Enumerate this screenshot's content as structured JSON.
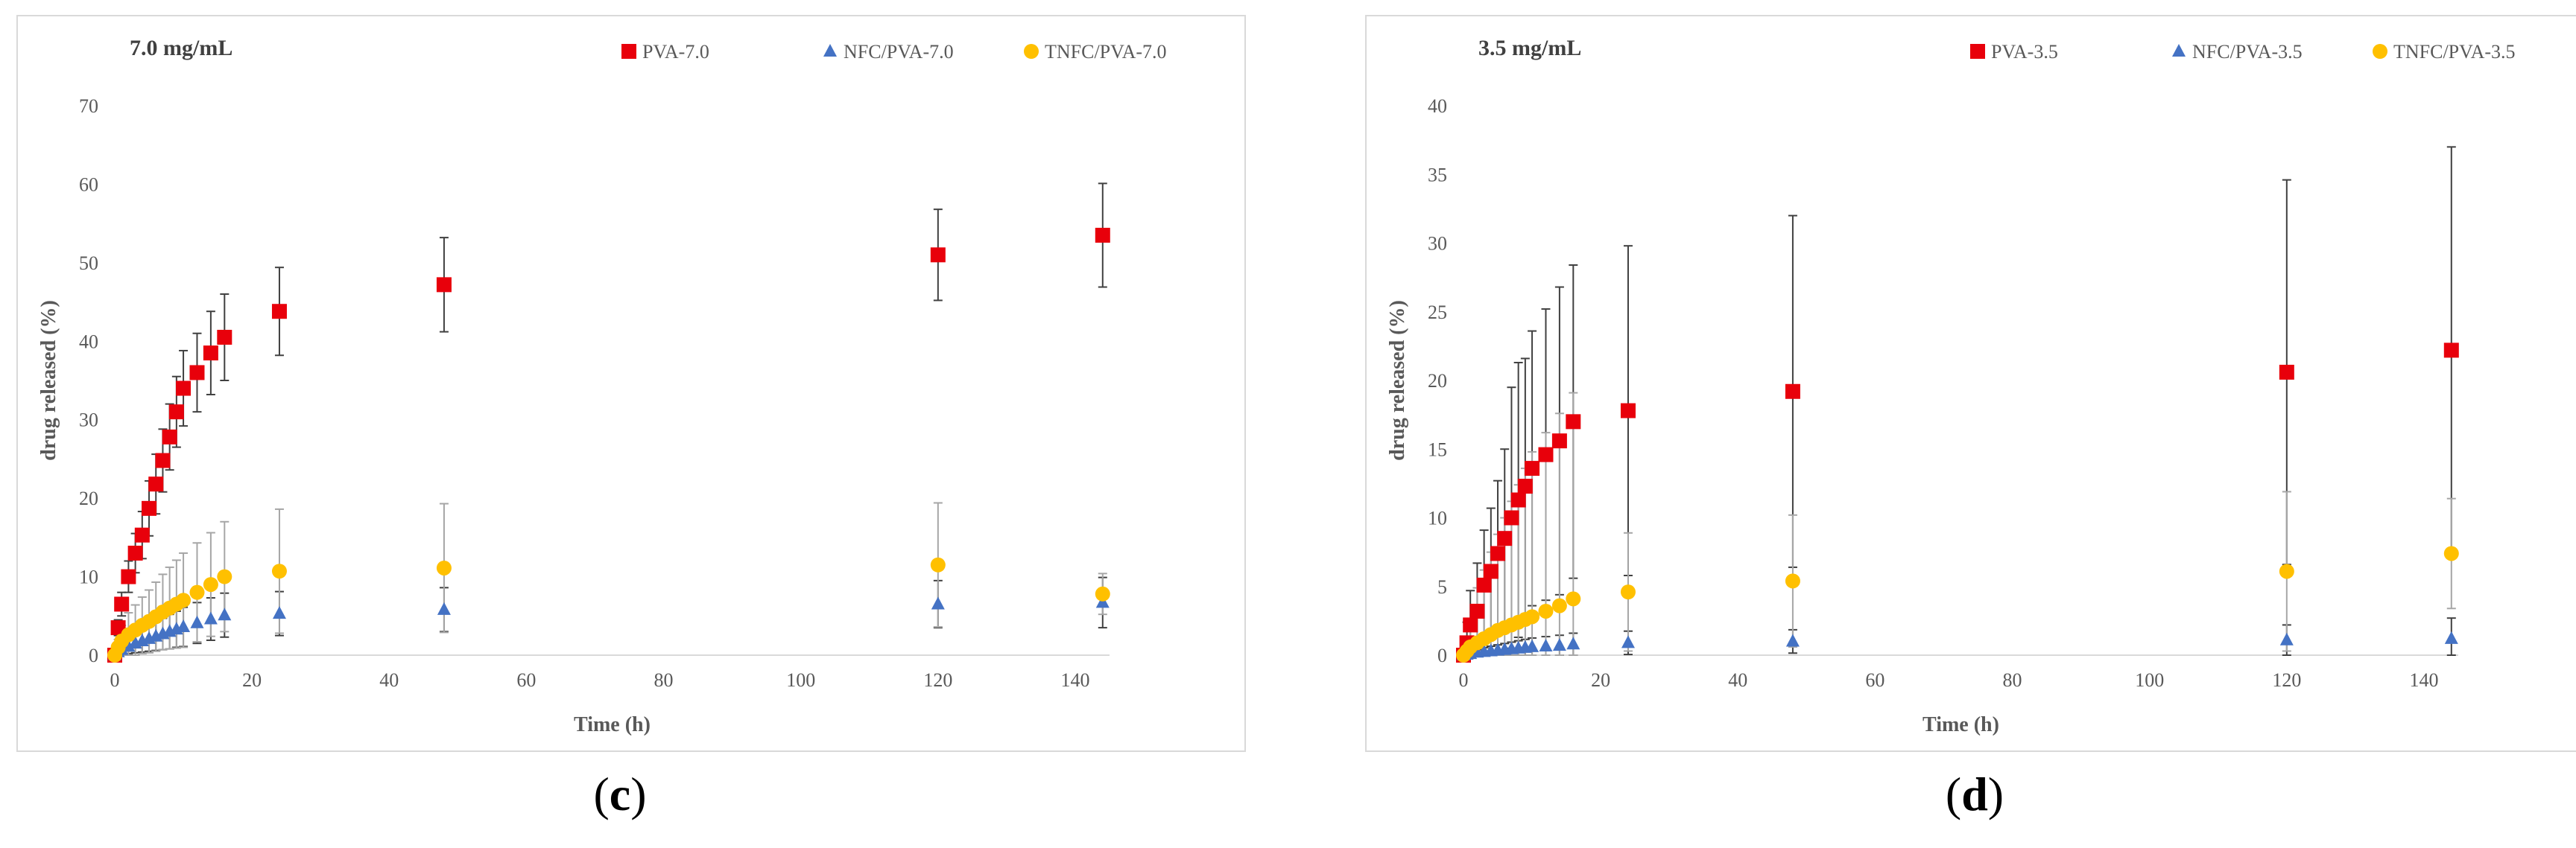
{
  "captions": [
    "(c)",
    "(d)"
  ],
  "chart_data": [
    {
      "type": "scatter",
      "title": "7.0 mg/mL",
      "xlabel": "Time (h)",
      "ylabel": "drug released (%)",
      "xlim": [
        0,
        145
      ],
      "ylim": [
        0,
        70
      ],
      "xticks": [
        0,
        20,
        40,
        60,
        80,
        100,
        120,
        140
      ],
      "yticks": [
        0,
        10,
        20,
        30,
        40,
        50,
        60,
        70
      ],
      "grid": false,
      "legend_position": "top-right",
      "series": [
        {
          "name": "PVA-7.0",
          "color": "#e8000b",
          "marker": "square",
          "x": [
            0,
            0.5,
            1,
            2,
            3,
            4,
            5,
            6,
            7,
            8,
            9,
            10,
            12,
            14,
            16,
            24,
            48,
            120,
            144
          ],
          "y": [
            0,
            3.5,
            6.5,
            10,
            13,
            15.3,
            18.7,
            21.8,
            24.8,
            27.8,
            31,
            34,
            36,
            38.5,
            40.5,
            43.8,
            47.2,
            51,
            53.5
          ],
          "err": [
            0,
            1,
            1.5,
            2,
            2.5,
            3,
            3.5,
            3.8,
            4,
            4.2,
            4.5,
            4.8,
            5,
            5.3,
            5.5,
            5.6,
            6,
            5.8,
            6.6
          ]
        },
        {
          "name": "NFC/PVA-7.0",
          "color": "#4472c4",
          "marker": "triangle",
          "x": [
            0,
            0.5,
            1,
            2,
            3,
            4,
            5,
            6,
            7,
            8,
            9,
            10,
            12,
            14,
            16,
            24,
            48,
            120,
            144
          ],
          "y": [
            0,
            0.4,
            0.7,
            1.1,
            1.5,
            1.8,
            2.1,
            2.4,
            2.7,
            3,
            3.3,
            3.6,
            4.1,
            4.6,
            5.1,
            5.3,
            5.8,
            6.5,
            6.7
          ],
          "err": [
            0,
            0.4,
            0.6,
            0.9,
            1.2,
            1.4,
            1.6,
            1.8,
            2,
            2.2,
            2.3,
            2.5,
            2.6,
            2.7,
            2.8,
            2.8,
            2.8,
            3,
            3.2
          ]
        },
        {
          "name": "TNFC/PVA-7.0",
          "color": "#ffc000",
          "marker": "circle",
          "x": [
            0,
            0.5,
            1,
            2,
            3,
            4,
            5,
            6,
            7,
            8,
            9,
            10,
            12,
            14,
            16,
            24,
            48,
            120,
            144
          ],
          "y": [
            0,
            1,
            1.8,
            2.6,
            3.2,
            3.8,
            4.3,
            4.9,
            5.5,
            6,
            6.5,
            7,
            8,
            9,
            10,
            10.7,
            11.1,
            11.5,
            7.8
          ],
          "err": [
            0,
            1,
            2,
            2.8,
            3.2,
            3.6,
            4,
            4.4,
            4.8,
            5.2,
            5.6,
            6,
            6.3,
            6.6,
            7,
            7.9,
            8.2,
            7.9,
            2.6
          ]
        }
      ]
    },
    {
      "type": "scatter",
      "title": "3.5 mg/mL",
      "xlabel": "Time (h)",
      "ylabel": "drug released (%)",
      "xlim": [
        0,
        145
      ],
      "ylim": [
        0,
        40
      ],
      "xticks": [
        0,
        20,
        40,
        60,
        80,
        100,
        120,
        140
      ],
      "yticks": [
        0,
        5,
        10,
        15,
        20,
        25,
        30,
        35,
        40
      ],
      "grid": false,
      "legend_position": "top-right",
      "series": [
        {
          "name": "PVA-3.5",
          "color": "#e8000b",
          "marker": "square",
          "x": [
            0,
            0.5,
            1,
            2,
            3,
            4,
            5,
            6,
            7,
            8,
            9,
            10,
            12,
            14,
            16,
            24,
            48,
            120,
            144
          ],
          "y": [
            0,
            0.9,
            2.2,
            3.2,
            5.1,
            6.1,
            7.4,
            8.5,
            10,
            11.3,
            12.3,
            13.6,
            14.6,
            15.6,
            17,
            17.8,
            19.2,
            20.6,
            22.2
          ],
          "err": [
            0,
            1.5,
            2.5,
            3.5,
            4,
            4.6,
            5.3,
            6.5,
            9.5,
            10,
            9.3,
            10,
            10.6,
            11.2,
            11.4,
            12,
            12.8,
            14,
            14.8
          ]
        },
        {
          "name": "NFC/PVA-3.5",
          "color": "#4472c4",
          "marker": "triangle",
          "x": [
            0,
            0.5,
            1,
            2,
            3,
            4,
            5,
            6,
            7,
            8,
            9,
            10,
            12,
            14,
            16,
            24,
            48,
            120,
            144
          ],
          "y": [
            0,
            0.05,
            0.1,
            0.2,
            0.25,
            0.3,
            0.35,
            0.4,
            0.45,
            0.5,
            0.55,
            0.6,
            0.65,
            0.7,
            0.8,
            0.9,
            1,
            1.1,
            1.2
          ],
          "err": [
            0,
            0.1,
            0.15,
            0.2,
            0.3,
            0.35,
            0.4,
            0.45,
            0.5,
            0.55,
            0.6,
            0.65,
            0.7,
            0.75,
            0.8,
            0.85,
            0.85,
            1.1,
            1.5
          ]
        },
        {
          "name": "TNFC/PVA-3.5",
          "color": "#ffc000",
          "marker": "circle",
          "x": [
            0,
            0.5,
            1,
            2,
            3,
            4,
            5,
            6,
            7,
            8,
            9,
            10,
            12,
            14,
            16,
            24,
            48,
            120,
            144
          ],
          "y": [
            0,
            0.3,
            0.6,
            0.9,
            1.2,
            1.5,
            1.8,
            2,
            2.2,
            2.4,
            2.6,
            2.8,
            3.2,
            3.6,
            4.1,
            4.6,
            5.4,
            6.1,
            7.4
          ],
          "err": [
            0,
            1,
            2,
            4,
            5,
            6,
            7,
            8,
            9,
            10,
            11,
            12,
            13,
            14,
            15,
            4.3,
            4.8,
            5.8,
            4
          ]
        }
      ]
    }
  ]
}
